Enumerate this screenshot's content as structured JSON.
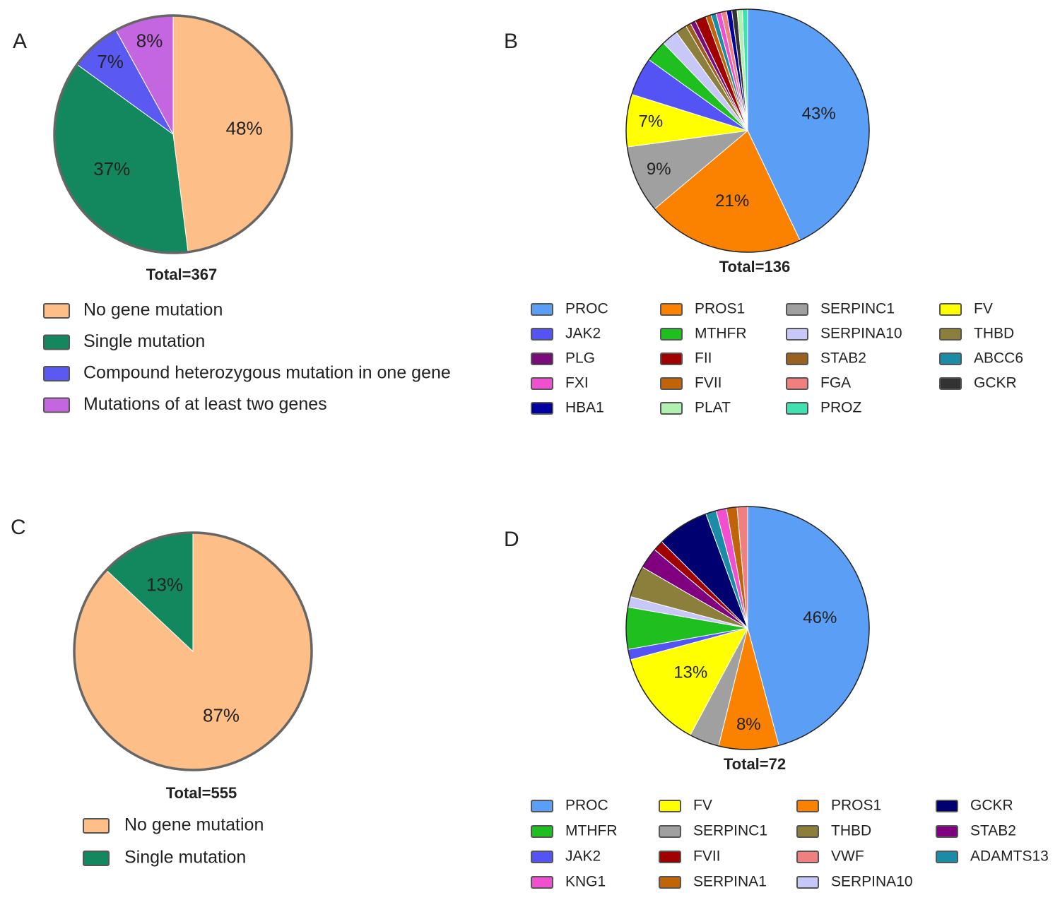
{
  "chart_data": [
    {
      "type": "pie",
      "panel_label": "A",
      "caption": "Total=367",
      "categories": [
        "No gene mutation",
        "Single mutation",
        "Compound heterozygous mutation in one gene",
        "Mutations of at least two genes"
      ],
      "values": [
        48,
        37,
        7,
        8
      ],
      "value_labels": [
        "48%",
        "37%",
        "7%",
        "8%"
      ],
      "colors": [
        "#fdbf87",
        "#13885e",
        "#5a5af2",
        "#c466e0"
      ]
    },
    {
      "type": "pie",
      "panel_label": "B",
      "caption": "Total=136",
      "categories": [
        "PROC",
        "PROS1",
        "SERPINC1",
        "FV",
        "JAK2",
        "MTHFR",
        "SERPINA10",
        "THBD",
        "STAB2",
        "PLG",
        "FII",
        "FVII",
        "ABCC6",
        "FXI",
        "FGA",
        "HBA1",
        "GCKR",
        "PLAT",
        "PROZ"
      ],
      "values": [
        43,
        21,
        9,
        7,
        5.1,
        2.9,
        2.2,
        1.5,
        0.7,
        0.7,
        1.5,
        0.7,
        0.7,
        0.7,
        0.7,
        0.7,
        0.7,
        0.7,
        0.7
      ],
      "value_labels": [
        "43%",
        "21%",
        "9%",
        "7%",
        null,
        null,
        null,
        null,
        null,
        null,
        null,
        null,
        null,
        null,
        null,
        null,
        null,
        null,
        null
      ],
      "colors": [
        "#5a9ef5",
        "#fb8200",
        "#a0a0a0",
        "#ffff00",
        "#5454f5",
        "#1fbf1f",
        "#c8c8f8",
        "#8c7f3c",
        "#9a6020",
        "#7b0a7b",
        "#a00000",
        "#c0640a",
        "#1a8ca8",
        "#f050d0",
        "#f08080",
        "#0000a0",
        "#333333",
        "#b0f0b0",
        "#40e0b0"
      ]
    },
    {
      "type": "pie",
      "panel_label": "C",
      "caption": "Total=555",
      "categories": [
        "No gene mutation",
        "Single mutation"
      ],
      "values": [
        87,
        13
      ],
      "value_labels": [
        "87%",
        "13%"
      ],
      "colors": [
        "#fdbf87",
        "#13885e"
      ]
    },
    {
      "type": "pie",
      "panel_label": "D",
      "caption": "Total=72",
      "categories": [
        "PROC",
        "PROS1",
        "SERPINC1",
        "FV",
        "JAK2",
        "MTHFR",
        "SERPINA10",
        "THBD",
        "STAB2",
        "FVII",
        "GCKR",
        "ADAMTS13",
        "KNG1",
        "SERPINA1",
        "VWF"
      ],
      "values": [
        46,
        8,
        4,
        13,
        1.4,
        5.6,
        1.4,
        4.2,
        2.8,
        1.4,
        6.9,
        1.4,
        1.4,
        1.4,
        1.4
      ],
      "value_labels": [
        "46%",
        "8%",
        null,
        "13%",
        null,
        null,
        null,
        null,
        null,
        null,
        null,
        null,
        null,
        null,
        null
      ],
      "colors": [
        "#5a9ef5",
        "#fb8200",
        "#a0a0a0",
        "#ffff00",
        "#5454f5",
        "#1fbf1f",
        "#c8c8f8",
        "#8c7f3c",
        "#800080",
        "#a00000",
        "#000070",
        "#1a8ca8",
        "#f050d0",
        "#c0640a",
        "#f08080"
      ]
    }
  ]
}
